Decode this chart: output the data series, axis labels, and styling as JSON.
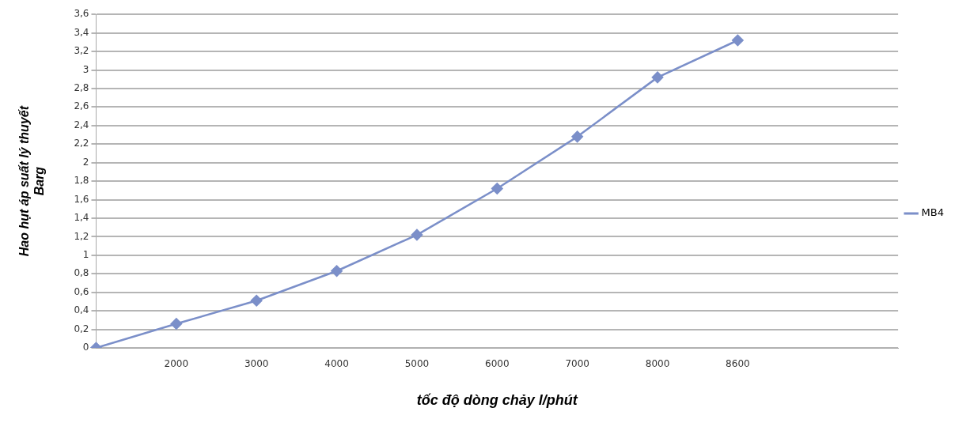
{
  "chart_data": {
    "type": "line",
    "xlabel": "tốc độ dòng chảy l/phút",
    "ylabel": "Hao hụt áp suất lý thuyết\nBarg",
    "categories": [
      null,
      "2000",
      "3000",
      "4000",
      "5000",
      "6000",
      "7000",
      "8000",
      "8600",
      null,
      null
    ],
    "series": [
      {
        "name": "MB4",
        "color": "#7b8fc9",
        "values": [
          0,
          0.26,
          0.51,
          0.83,
          1.22,
          1.72,
          2.28,
          2.92,
          3.32,
          null,
          null
        ]
      }
    ],
    "ylim": [
      0,
      3.6
    ],
    "yticks": [
      0,
      {
        "value": 0.2,
        "label": "0,2"
      },
      {
        "value": 0.4,
        "label": "0,4"
      },
      {
        "value": 0.6,
        "label": "0,6"
      },
      {
        "value": 0.8,
        "label": "0,8"
      },
      1,
      {
        "value": 1.2,
        "label": "1,2"
      },
      {
        "value": 1.4,
        "label": "1,4"
      },
      {
        "value": 1.6,
        "label": "1,6"
      },
      {
        "value": 1.8,
        "label": "1,8"
      },
      2,
      {
        "value": 2.2,
        "label": "2,2"
      },
      {
        "value": 2.4,
        "label": "2,4"
      },
      {
        "value": 2.6,
        "label": "2,6"
      },
      {
        "value": 2.8,
        "label": "2,8"
      },
      3,
      {
        "value": 3.2,
        "label": "3,2"
      },
      {
        "value": 3.4,
        "label": "3,4"
      },
      {
        "value": 3.6,
        "label": "3,6"
      }
    ],
    "grid": "y",
    "legend": "right",
    "marker": "diamond",
    "line_style": "solid"
  }
}
